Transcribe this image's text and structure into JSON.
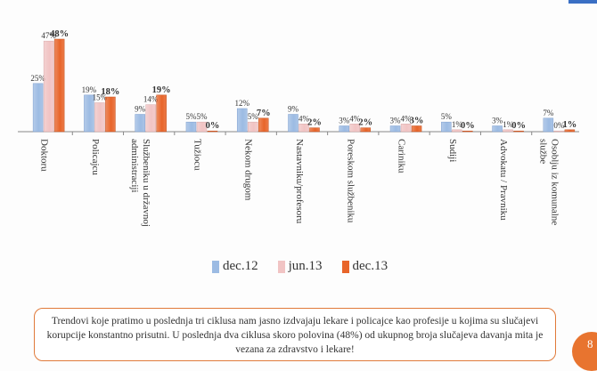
{
  "chart_data": {
    "type": "bar",
    "categories": [
      "Doktoru",
      "Policajcu",
      "Službeniku u državnoj administraciji",
      "Tužiocu",
      "Nekom drugom",
      "Nastavniku/profesoru",
      "Poreskom službeniku",
      "Cariniku",
      "Sudiji",
      "Advokatu / Pravniku",
      "Osoblju iz komunalne službe"
    ],
    "series": [
      {
        "name": "dec.12",
        "values": [
          25,
          19,
          9,
          5,
          12,
          9,
          3,
          3,
          5,
          3,
          7
        ],
        "labels": [
          "25%",
          "19%",
          "9%",
          "5%",
          "12%",
          "9%",
          "3%",
          "3%",
          "5%",
          "3%",
          "7%"
        ]
      },
      {
        "name": "jun.13",
        "values": [
          47,
          15,
          14,
          5,
          5,
          4,
          4,
          4,
          1,
          1,
          0
        ],
        "labels": [
          "47%",
          "15%",
          "14%",
          "5%",
          "5%",
          "4%",
          "4%",
          "4%",
          "1%",
          "1%",
          "0%"
        ]
      },
      {
        "name": "dec.13",
        "values": [
          48,
          18,
          19,
          0,
          7,
          2,
          2,
          3,
          0,
          0,
          1
        ],
        "labels": [
          "48%",
          "18%",
          "19%",
          "0%",
          "7%",
          "2%",
          "2%",
          "3%",
          "0%",
          "0%",
          "1%"
        ]
      }
    ],
    "ylim": [
      0,
      48
    ],
    "legend_position": "bottom",
    "colors": [
      "#9cbbe3",
      "#f1c4c4",
      "#e8652a"
    ],
    "grid": false
  },
  "note": "Trendovi koje pratimo u poslednja tri ciklusa nam jasno izdvajaju lekare i policajce kao profesije u kojima su slučajevi korupcije konstantno prisutni. U poslednja dva ciklusa skoro polovina (48%) od ukupnog broja slučajeva davanja mita je vezana za zdravstvo i lekare!",
  "page_number": "8"
}
